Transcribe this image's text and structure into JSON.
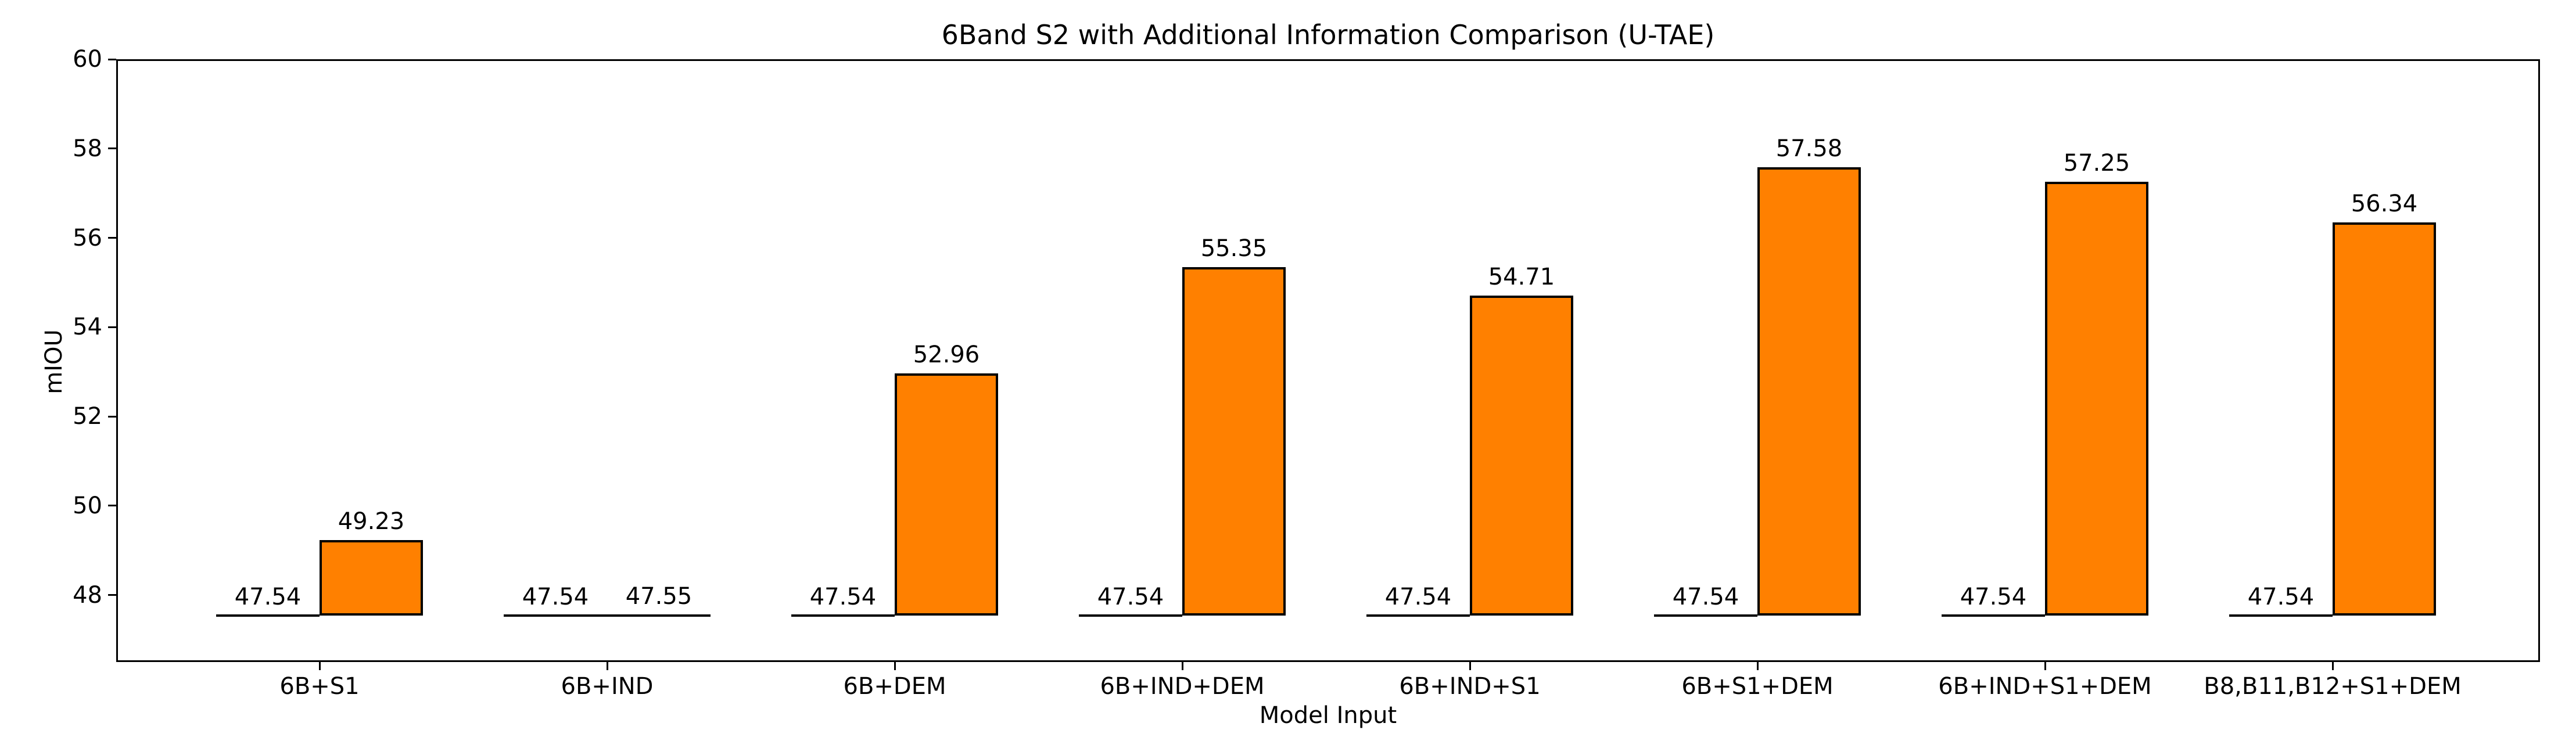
{
  "figure": {
    "background": "#ffffff"
  },
  "chart_data": {
    "type": "bar",
    "title": "6Band S2 with Additional Information Comparison (U-TAE)",
    "xlabel": "Model Input",
    "ylabel": "mIOU",
    "categories": [
      "6B+S1",
      "6B+IND",
      "6B+DEM",
      "6B+IND+DEM",
      "6B+IND+S1",
      "6B+S1+DEM",
      "6B+IND+S1+DEM",
      "B8,B11,B12+S1+DEM"
    ],
    "series": [
      {
        "role": "baseline-marker",
        "values": [
          47.54,
          47.54,
          47.54,
          47.54,
          47.54,
          47.54,
          47.54,
          47.54
        ]
      },
      {
        "role": "bar",
        "values": [
          49.23,
          47.55,
          52.96,
          55.35,
          54.71,
          57.58,
          57.25,
          56.34
        ]
      }
    ],
    "value_labels": true,
    "ylim": [
      46.5,
      60
    ],
    "yticks": [
      48,
      50,
      52,
      54,
      56,
      58,
      60
    ],
    "grid": false,
    "legend": false,
    "bar_color": "#ff8000",
    "edge_color": "#000000"
  }
}
